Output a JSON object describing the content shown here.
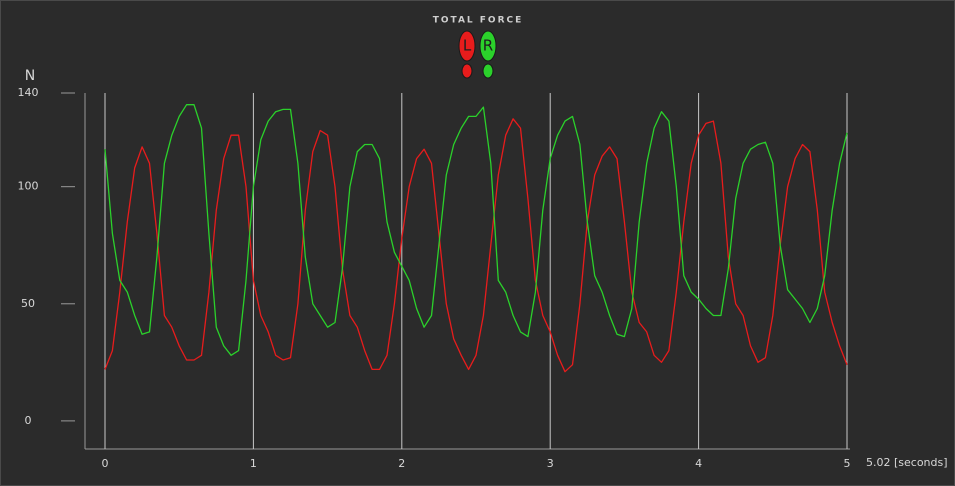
{
  "chart_data": {
    "type": "line",
    "title": "TOTAL FORCE",
    "y_label": "N",
    "x_label": "5.02 [seconds]",
    "x": [
      0,
      0.05,
      0.1,
      0.15,
      0.2,
      0.25,
      0.3,
      0.35,
      0.4,
      0.45,
      0.5,
      0.55,
      0.6,
      0.65,
      0.7,
      0.75,
      0.8,
      0.85,
      0.9,
      0.95,
      1,
      1.05,
      1.1,
      1.15,
      1.2,
      1.25,
      1.3,
      1.35,
      1.4,
      1.45,
      1.5,
      1.55,
      1.6,
      1.65,
      1.7,
      1.75,
      1.8,
      1.85,
      1.9,
      1.95,
      2,
      2.05,
      2.1,
      2.15,
      2.2,
      2.25,
      2.3,
      2.35,
      2.4,
      2.45,
      2.5,
      2.55,
      2.6,
      2.65,
      2.7,
      2.75,
      2.8,
      2.85,
      2.9,
      2.95,
      3,
      3.05,
      3.1,
      3.15,
      3.2,
      3.25,
      3.3,
      3.35,
      3.4,
      3.45,
      3.5,
      3.55,
      3.6,
      3.65,
      3.7,
      3.75,
      3.8,
      3.85,
      3.9,
      3.95,
      4,
      4.05,
      4.1,
      4.15,
      4.2,
      4.25,
      4.3,
      4.35,
      4.4,
      4.45,
      4.5,
      4.55,
      4.6,
      4.65,
      4.7,
      4.75,
      4.8,
      4.85,
      4.9,
      4.95,
      5
    ],
    "series": [
      {
        "name": "L",
        "color": "#e81c1c",
        "values": [
          22,
          30,
          55,
          85,
          108,
          117,
          110,
          80,
          45,
          40,
          32,
          26,
          26,
          28,
          55,
          90,
          112,
          122,
          122,
          100,
          60,
          45,
          38,
          28,
          26,
          27,
          50,
          90,
          115,
          124,
          122,
          100,
          65,
          45,
          40,
          30,
          22,
          22,
          28,
          50,
          78,
          100,
          112,
          116,
          110,
          80,
          50,
          35,
          28,
          22,
          28,
          45,
          75,
          105,
          122,
          129,
          125,
          95,
          60,
          45,
          38,
          28,
          21,
          24,
          50,
          85,
          105,
          113,
          117,
          112,
          85,
          55,
          42,
          38,
          28,
          25,
          30,
          55,
          85,
          110,
          122,
          127,
          128,
          110,
          70,
          50,
          45,
          32,
          25,
          27,
          45,
          75,
          100,
          112,
          118,
          115,
          90,
          55,
          42,
          32,
          24
        ]
      },
      {
        "name": "R",
        "color": "#2bd12b",
        "values": [
          116,
          80,
          60,
          55,
          45,
          37,
          38,
          70,
          110,
          122,
          130,
          135,
          135,
          125,
          80,
          40,
          32,
          28,
          30,
          60,
          100,
          120,
          128,
          132,
          133,
          133,
          110,
          70,
          50,
          45,
          40,
          42,
          65,
          100,
          115,
          118,
          118,
          112,
          85,
          72,
          66,
          60,
          48,
          40,
          45,
          75,
          105,
          118,
          125,
          130,
          130,
          134,
          110,
          60,
          55,
          45,
          38,
          36,
          55,
          90,
          112,
          122,
          128,
          130,
          118,
          85,
          62,
          55,
          45,
          37,
          36,
          48,
          85,
          110,
          125,
          132,
          128,
          100,
          62,
          55,
          52,
          48,
          45,
          45,
          65,
          95,
          110,
          116,
          118,
          119,
          110,
          75,
          56,
          52,
          48,
          42,
          48,
          62,
          90,
          110,
          123
        ]
      }
    ],
    "xlim": [
      0,
      5
    ],
    "xticks": [
      0,
      1,
      2,
      3,
      4,
      5
    ],
    "ylim": [
      -12,
      140
    ],
    "yticks": [
      0,
      50,
      100,
      140
    ],
    "grid": true
  }
}
